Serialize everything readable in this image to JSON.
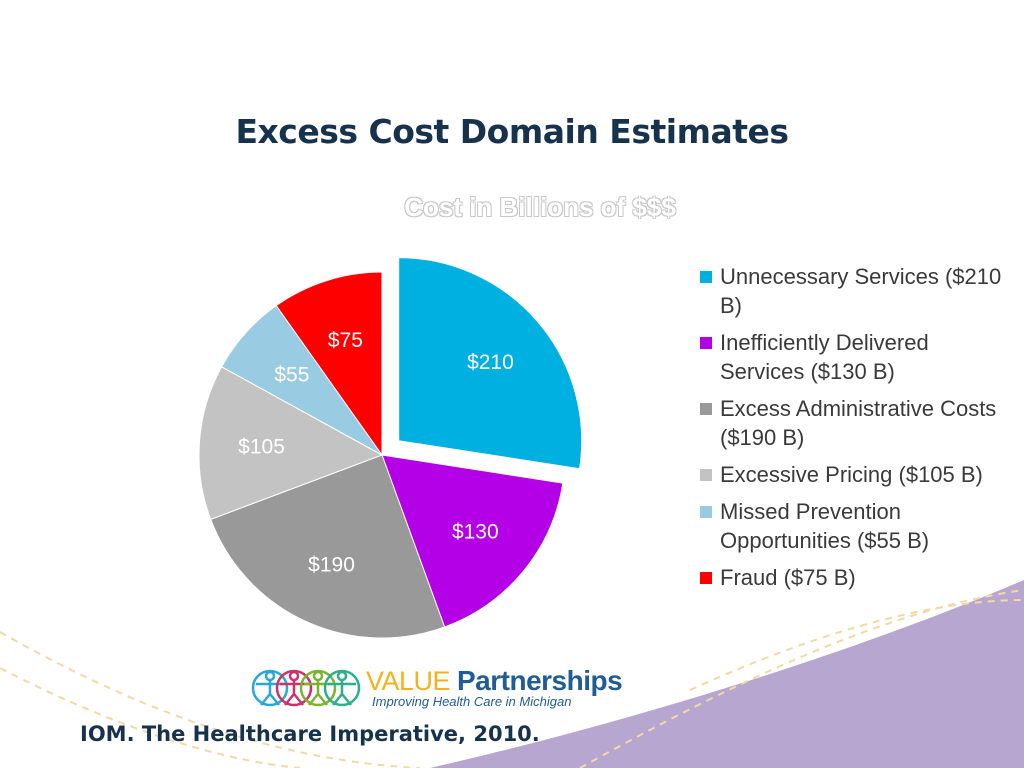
{
  "slide": {
    "title": "Excess Cost Domain Estimates",
    "citation": "IOM. The Healthcare Imperative, 2010."
  },
  "logo": {
    "value": "VALUE",
    "partnerships": "Partnerships",
    "tagline": "Improving Health Care in Michigan",
    "figure_colors": [
      "#29a8d8",
      "#d0306a",
      "#7ab52e",
      "#2fae8c"
    ]
  },
  "colors": {
    "title": "#17324d",
    "background_deco": "#b7a6cf",
    "dash_lines": "#f3d9a4"
  },
  "chart_data": {
    "type": "pie",
    "title": "Cost in Billions of $$$",
    "slices": [
      {
        "label": "Unnecessary Services ($210 B)",
        "value": 210,
        "data_label": "$210",
        "color": "#00b0e0",
        "exploded": true
      },
      {
        "label": "Inefficiently Delivered Services ($130 B)",
        "value": 130,
        "data_label": "$130",
        "color": "#b300e6",
        "exploded": false
      },
      {
        "label": "Excess Administrative Costs ($190 B)",
        "value": 190,
        "data_label": "$190",
        "color": "#999999",
        "exploded": false
      },
      {
        "label": "Excessive Pricing ($105 B)",
        "value": 105,
        "data_label": "$105",
        "color": "#c3c3c3",
        "exploded": false
      },
      {
        "label": "Missed Prevention Opportunities ($55 B)",
        "value": 55,
        "data_label": "$55",
        "color": "#99cbe3",
        "exploded": false
      },
      {
        "label": "Fraud ($75 B)",
        "value": 75,
        "data_label": "$75",
        "color": "#ff0000",
        "exploded": false
      }
    ],
    "legend_position": "right"
  }
}
